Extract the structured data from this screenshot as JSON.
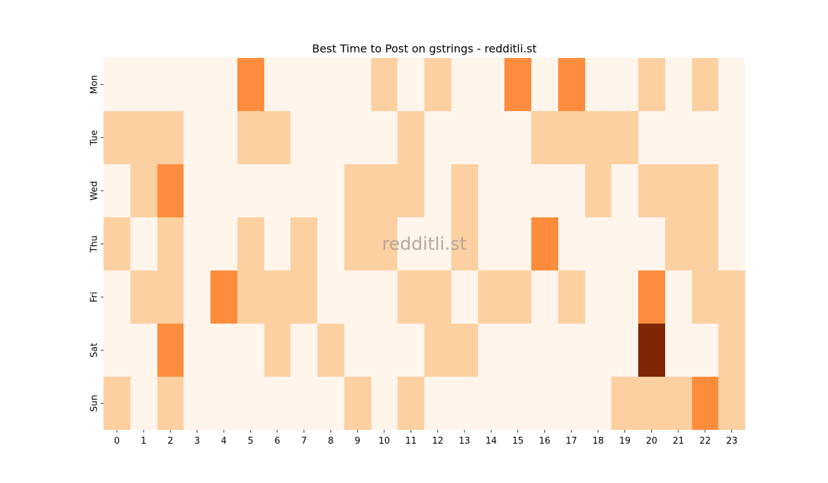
{
  "chart_data": {
    "type": "heatmap",
    "title": "Best Time to Post on gstrings - redditli.st",
    "watermark": "redditli.st",
    "x_categories": [
      "0",
      "1",
      "2",
      "3",
      "4",
      "5",
      "6",
      "7",
      "8",
      "9",
      "10",
      "11",
      "12",
      "13",
      "14",
      "15",
      "16",
      "17",
      "18",
      "19",
      "20",
      "21",
      "22",
      "23"
    ],
    "y_categories": [
      "Mon",
      "Tue",
      "Wed",
      "Thu",
      "Fri",
      "Sat",
      "Sun"
    ],
    "xlabel": "",
    "ylabel": "",
    "colormap": "Oranges",
    "levels": [
      0,
      1,
      2,
      3
    ],
    "colors": [
      "#fff5eb",
      "#fdd0a2",
      "#fd8d3c",
      "#7f2704"
    ],
    "values": [
      [
        0,
        0,
        0,
        0,
        0,
        2,
        0,
        0,
        0,
        0,
        1,
        0,
        1,
        0,
        0,
        2,
        0,
        2,
        0,
        0,
        1,
        0,
        1,
        0
      ],
      [
        1,
        1,
        1,
        0,
        0,
        1,
        1,
        0,
        0,
        0,
        0,
        1,
        0,
        0,
        0,
        0,
        1,
        1,
        1,
        1,
        0,
        0,
        0,
        0
      ],
      [
        0,
        1,
        2,
        0,
        0,
        0,
        0,
        0,
        0,
        1,
        1,
        1,
        0,
        1,
        0,
        0,
        0,
        0,
        1,
        0,
        1,
        1,
        1,
        0
      ],
      [
        1,
        0,
        1,
        0,
        0,
        1,
        0,
        1,
        0,
        1,
        1,
        0,
        0,
        1,
        0,
        0,
        2,
        0,
        0,
        0,
        0,
        1,
        1,
        0
      ],
      [
        0,
        1,
        1,
        0,
        2,
        1,
        1,
        1,
        0,
        0,
        0,
        1,
        1,
        0,
        1,
        1,
        0,
        1,
        0,
        0,
        2,
        0,
        1,
        1
      ],
      [
        0,
        0,
        2,
        0,
        0,
        0,
        1,
        0,
        1,
        0,
        0,
        0,
        1,
        1,
        0,
        0,
        0,
        0,
        0,
        0,
        3,
        0,
        0,
        1
      ],
      [
        1,
        0,
        1,
        0,
        0,
        0,
        0,
        0,
        0,
        1,
        0,
        1,
        0,
        0,
        0,
        0,
        0,
        0,
        0,
        1,
        1,
        1,
        2,
        1
      ]
    ]
  }
}
